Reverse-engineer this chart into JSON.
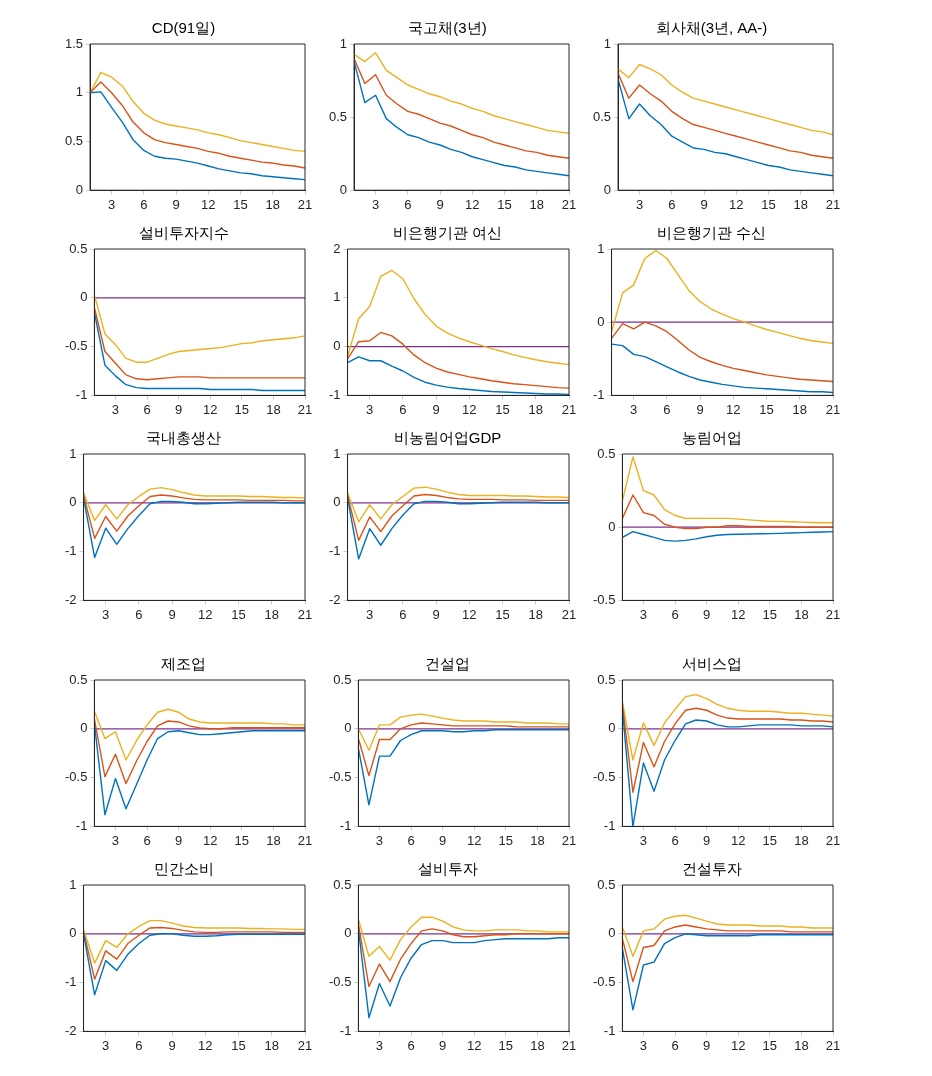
{
  "chart_data": [
    {
      "type": "line",
      "title": "CD(91일)",
      "x": [
        1,
        2,
        3,
        4,
        5,
        6,
        7,
        8,
        9,
        10,
        11,
        12,
        13,
        14,
        15,
        16,
        17,
        18,
        19,
        20,
        21
      ],
      "xlim": [
        1,
        21
      ],
      "xticks": [
        3,
        6,
        9,
        12,
        15,
        18,
        21
      ],
      "ylim": [
        0,
        1.5
      ],
      "yticks": [
        0,
        0.5,
        1,
        1.5
      ],
      "grid": false,
      "legend": false,
      "ref_lines": [
        {
          "axis": "y",
          "value": 0,
          "color": "#7e2f8e"
        }
      ],
      "series": [
        {
          "color": "#0072bd",
          "values": [
            1.0,
            1.01,
            0.85,
            0.7,
            0.52,
            0.41,
            0.35,
            0.33,
            0.32,
            0.3,
            0.28,
            0.25,
            0.22,
            0.2,
            0.18,
            0.17,
            0.15,
            0.14,
            0.13,
            0.12,
            0.11
          ]
        },
        {
          "color": "#d95319",
          "values": [
            1.0,
            1.11,
            1.0,
            0.87,
            0.7,
            0.59,
            0.52,
            0.49,
            0.47,
            0.45,
            0.43,
            0.4,
            0.38,
            0.35,
            0.33,
            0.31,
            0.29,
            0.28,
            0.26,
            0.25,
            0.23
          ]
        },
        {
          "color": "#edb120",
          "values": [
            1.0,
            1.21,
            1.16,
            1.07,
            0.91,
            0.79,
            0.72,
            0.68,
            0.66,
            0.64,
            0.62,
            0.59,
            0.57,
            0.54,
            0.51,
            0.49,
            0.47,
            0.45,
            0.43,
            0.41,
            0.4
          ]
        }
      ]
    },
    {
      "type": "line",
      "title": "국고채(3년)",
      "x": [
        1,
        2,
        3,
        4,
        5,
        6,
        7,
        8,
        9,
        10,
        11,
        12,
        13,
        14,
        15,
        16,
        17,
        18,
        19,
        20,
        21
      ],
      "xlim": [
        1,
        21
      ],
      "xticks": [
        3,
        6,
        9,
        12,
        15,
        18,
        21
      ],
      "ylim": [
        0,
        1
      ],
      "yticks": [
        0,
        0.5,
        1
      ],
      "grid": false,
      "legend": false,
      "ref_lines": [
        {
          "axis": "y",
          "value": 0,
          "color": "#7e2f8e"
        }
      ],
      "series": [
        {
          "color": "#0072bd",
          "values": [
            0.88,
            0.6,
            0.65,
            0.49,
            0.43,
            0.38,
            0.36,
            0.33,
            0.31,
            0.28,
            0.26,
            0.23,
            0.21,
            0.19,
            0.17,
            0.16,
            0.14,
            0.13,
            0.12,
            0.11,
            0.1
          ]
        },
        {
          "color": "#d95319",
          "values": [
            0.9,
            0.73,
            0.79,
            0.65,
            0.59,
            0.54,
            0.52,
            0.49,
            0.46,
            0.44,
            0.41,
            0.38,
            0.36,
            0.33,
            0.31,
            0.29,
            0.27,
            0.26,
            0.24,
            0.23,
            0.22
          ]
        },
        {
          "color": "#edb120",
          "values": [
            0.93,
            0.88,
            0.94,
            0.82,
            0.77,
            0.72,
            0.69,
            0.66,
            0.64,
            0.61,
            0.59,
            0.56,
            0.54,
            0.51,
            0.49,
            0.47,
            0.45,
            0.43,
            0.41,
            0.4,
            0.39
          ]
        }
      ]
    },
    {
      "type": "line",
      "title": "회사채(3년, AA-)",
      "x": [
        1,
        2,
        3,
        4,
        5,
        6,
        7,
        8,
        9,
        10,
        11,
        12,
        13,
        14,
        15,
        16,
        17,
        18,
        19,
        20,
        21
      ],
      "xlim": [
        1,
        21
      ],
      "xticks": [
        3,
        6,
        9,
        12,
        15,
        18,
        21
      ],
      "ylim": [
        0,
        1
      ],
      "yticks": [
        0,
        0.5,
        1
      ],
      "grid": false,
      "legend": false,
      "ref_lines": [
        {
          "axis": "y",
          "value": 0,
          "color": "#7e2f8e"
        }
      ],
      "series": [
        {
          "color": "#0072bd",
          "values": [
            0.76,
            0.49,
            0.59,
            0.51,
            0.45,
            0.37,
            0.33,
            0.29,
            0.28,
            0.26,
            0.25,
            0.23,
            0.21,
            0.19,
            0.17,
            0.16,
            0.14,
            0.13,
            0.12,
            0.11,
            0.1
          ]
        },
        {
          "color": "#d95319",
          "values": [
            0.8,
            0.63,
            0.72,
            0.66,
            0.61,
            0.54,
            0.49,
            0.45,
            0.43,
            0.41,
            0.39,
            0.37,
            0.35,
            0.33,
            0.31,
            0.29,
            0.27,
            0.26,
            0.24,
            0.23,
            0.22
          ]
        },
        {
          "color": "#edb120",
          "values": [
            0.83,
            0.77,
            0.86,
            0.83,
            0.79,
            0.72,
            0.67,
            0.63,
            0.61,
            0.59,
            0.57,
            0.55,
            0.53,
            0.51,
            0.49,
            0.47,
            0.45,
            0.43,
            0.41,
            0.4,
            0.38
          ]
        }
      ]
    },
    {
      "type": "line",
      "title": "설비투자지수",
      "x": [
        1,
        2,
        3,
        4,
        5,
        6,
        7,
        8,
        9,
        10,
        11,
        12,
        13,
        14,
        15,
        16,
        17,
        18,
        19,
        20,
        21
      ],
      "xlim": [
        1,
        21
      ],
      "xticks": [
        3,
        6,
        9,
        12,
        15,
        18,
        21
      ],
      "ylim": [
        -1,
        0.5
      ],
      "yticks": [
        -1,
        -0.5,
        0,
        0.5
      ],
      "grid": false,
      "legend": false,
      "ref_lines": [
        {
          "axis": "y",
          "value": 0,
          "color": "#7e2f8e"
        }
      ],
      "series": [
        {
          "color": "#0072bd",
          "values": [
            -0.15,
            -0.69,
            -0.8,
            -0.89,
            -0.92,
            -0.93,
            -0.93,
            -0.93,
            -0.93,
            -0.93,
            -0.93,
            -0.94,
            -0.94,
            -0.94,
            -0.94,
            -0.94,
            -0.95,
            -0.95,
            -0.95,
            -0.95,
            -0.95
          ]
        },
        {
          "color": "#d95319",
          "values": [
            -0.1,
            -0.55,
            -0.67,
            -0.79,
            -0.83,
            -0.84,
            -0.83,
            -0.82,
            -0.81,
            -0.81,
            -0.81,
            -0.82,
            -0.82,
            -0.82,
            -0.82,
            -0.82,
            -0.82,
            -0.82,
            -0.82,
            -0.82,
            -0.82
          ]
        },
        {
          "color": "#edb120",
          "values": [
            0.03,
            -0.37,
            -0.48,
            -0.62,
            -0.66,
            -0.66,
            -0.62,
            -0.58,
            -0.55,
            -0.54,
            -0.53,
            -0.52,
            -0.51,
            -0.49,
            -0.47,
            -0.46,
            -0.44,
            -0.43,
            -0.42,
            -0.41,
            -0.39
          ]
        }
      ]
    },
    {
      "type": "line",
      "title": "비은행기관 여신",
      "x": [
        1,
        2,
        3,
        4,
        5,
        6,
        7,
        8,
        9,
        10,
        11,
        12,
        13,
        14,
        15,
        16,
        17,
        18,
        19,
        20,
        21
      ],
      "xlim": [
        1,
        21
      ],
      "xticks": [
        3,
        6,
        9,
        12,
        15,
        18,
        21
      ],
      "ylim": [
        -1,
        2
      ],
      "yticks": [
        -1,
        0,
        1,
        2
      ],
      "grid": false,
      "legend": false,
      "ref_lines": [
        {
          "axis": "y",
          "value": 0,
          "color": "#7e2f8e"
        }
      ],
      "series": [
        {
          "color": "#0072bd",
          "values": [
            -0.33,
            -0.21,
            -0.29,
            -0.29,
            -0.4,
            -0.5,
            -0.63,
            -0.73,
            -0.79,
            -0.83,
            -0.86,
            -0.88,
            -0.9,
            -0.92,
            -0.93,
            -0.94,
            -0.95,
            -0.96,
            -0.97,
            -0.97,
            -0.98
          ]
        },
        {
          "color": "#d95319",
          "values": [
            -0.25,
            0.1,
            0.12,
            0.29,
            0.22,
            0.05,
            -0.17,
            -0.33,
            -0.44,
            -0.52,
            -0.57,
            -0.62,
            -0.66,
            -0.7,
            -0.73,
            -0.76,
            -0.78,
            -0.8,
            -0.82,
            -0.84,
            -0.85
          ]
        },
        {
          "color": "#edb120",
          "values": [
            -0.2,
            0.57,
            0.82,
            1.44,
            1.56,
            1.39,
            0.98,
            0.66,
            0.42,
            0.28,
            0.18,
            0.1,
            0.03,
            -0.04,
            -0.1,
            -0.17,
            -0.22,
            -0.27,
            -0.31,
            -0.34,
            -0.37
          ]
        }
      ]
    },
    {
      "type": "line",
      "title": "비은행기관 수신",
      "x": [
        1,
        2,
        3,
        4,
        5,
        6,
        7,
        8,
        9,
        10,
        11,
        12,
        13,
        14,
        15,
        16,
        17,
        18,
        19,
        20,
        21
      ],
      "xlim": [
        1,
        21
      ],
      "xticks": [
        3,
        6,
        9,
        12,
        15,
        18,
        21
      ],
      "ylim": [
        -1,
        1
      ],
      "yticks": [
        -1,
        0,
        1
      ],
      "grid": false,
      "legend": false,
      "ref_lines": [
        {
          "axis": "y",
          "value": 0,
          "color": "#7e2f8e"
        }
      ],
      "series": [
        {
          "color": "#0072bd",
          "values": [
            -0.3,
            -0.32,
            -0.44,
            -0.47,
            -0.54,
            -0.61,
            -0.68,
            -0.74,
            -0.79,
            -0.82,
            -0.85,
            -0.87,
            -0.89,
            -0.9,
            -0.91,
            -0.92,
            -0.93,
            -0.94,
            -0.95,
            -0.95,
            -0.96
          ]
        },
        {
          "color": "#d95319",
          "values": [
            -0.22,
            -0.02,
            -0.09,
            0.0,
            -0.05,
            -0.13,
            -0.25,
            -0.38,
            -0.48,
            -0.54,
            -0.59,
            -0.63,
            -0.66,
            -0.69,
            -0.72,
            -0.74,
            -0.76,
            -0.78,
            -0.79,
            -0.8,
            -0.81
          ]
        },
        {
          "color": "#edb120",
          "values": [
            -0.13,
            0.4,
            0.51,
            0.87,
            0.98,
            0.87,
            0.65,
            0.43,
            0.28,
            0.18,
            0.11,
            0.05,
            0.0,
            -0.05,
            -0.1,
            -0.14,
            -0.18,
            -0.22,
            -0.25,
            -0.27,
            -0.29
          ]
        }
      ]
    },
    {
      "type": "line",
      "title": "국내총생산",
      "x": [
        1,
        2,
        3,
        4,
        5,
        6,
        7,
        8,
        9,
        10,
        11,
        12,
        13,
        14,
        15,
        16,
        17,
        18,
        19,
        20,
        21
      ],
      "xlim": [
        1,
        21
      ],
      "xticks": [
        3,
        6,
        9,
        12,
        15,
        18,
        21
      ],
      "ylim": [
        -2,
        1
      ],
      "yticks": [
        -2,
        -1,
        0,
        1
      ],
      "grid": false,
      "legend": false,
      "ref_lines": [
        {
          "axis": "y",
          "value": 0,
          "color": "#7e2f8e"
        }
      ],
      "series": [
        {
          "color": "#0072bd",
          "values": [
            0.1,
            -1.12,
            -0.52,
            -0.85,
            -0.53,
            -0.26,
            -0.02,
            0.03,
            0.03,
            0.01,
            -0.02,
            -0.02,
            -0.01,
            0.0,
            0.01,
            0.01,
            0.01,
            0.01,
            0.0,
            0.0,
            0.0
          ]
        },
        {
          "color": "#d95319",
          "values": [
            0.15,
            -0.73,
            -0.28,
            -0.58,
            -0.27,
            -0.06,
            0.13,
            0.16,
            0.14,
            0.1,
            0.07,
            0.06,
            0.06,
            0.06,
            0.06,
            0.05,
            0.05,
            0.05,
            0.05,
            0.04,
            0.04
          ]
        },
        {
          "color": "#edb120",
          "values": [
            0.2,
            -0.36,
            -0.04,
            -0.33,
            -0.04,
            0.13,
            0.28,
            0.31,
            0.27,
            0.21,
            0.16,
            0.14,
            0.14,
            0.14,
            0.14,
            0.13,
            0.13,
            0.12,
            0.11,
            0.11,
            0.1
          ]
        }
      ]
    },
    {
      "type": "line",
      "title": "비농림어업GDP",
      "x": [
        1,
        2,
        3,
        4,
        5,
        6,
        7,
        8,
        9,
        10,
        11,
        12,
        13,
        14,
        15,
        16,
        17,
        18,
        19,
        20,
        21
      ],
      "xlim": [
        1,
        21
      ],
      "xticks": [
        3,
        6,
        9,
        12,
        15,
        18,
        21
      ],
      "ylim": [
        -2,
        1
      ],
      "yticks": [
        -2,
        -1,
        0,
        1
      ],
      "grid": false,
      "legend": false,
      "ref_lines": [
        {
          "axis": "y",
          "value": 0,
          "color": "#7e2f8e"
        }
      ],
      "series": [
        {
          "color": "#0072bd",
          "values": [
            0.1,
            -1.15,
            -0.53,
            -0.87,
            -0.53,
            -0.25,
            -0.02,
            0.03,
            0.03,
            0.01,
            -0.02,
            -0.02,
            -0.01,
            0.0,
            0.01,
            0.01,
            0.01,
            0.01,
            0.0,
            0.0,
            0.0
          ]
        },
        {
          "color": "#d95319",
          "values": [
            0.15,
            -0.77,
            -0.29,
            -0.59,
            -0.27,
            -0.06,
            0.14,
            0.17,
            0.15,
            0.11,
            0.08,
            0.07,
            0.07,
            0.07,
            0.06,
            0.06,
            0.06,
            0.05,
            0.05,
            0.05,
            0.05
          ]
        },
        {
          "color": "#edb120",
          "values": [
            0.2,
            -0.39,
            -0.04,
            -0.33,
            -0.04,
            0.13,
            0.3,
            0.32,
            0.28,
            0.22,
            0.17,
            0.15,
            0.15,
            0.15,
            0.15,
            0.14,
            0.14,
            0.13,
            0.12,
            0.12,
            0.11
          ]
        }
      ]
    },
    {
      "type": "line",
      "title": "농림어업",
      "x": [
        1,
        2,
        3,
        4,
        5,
        6,
        7,
        8,
        9,
        10,
        11,
        12,
        13,
        14,
        15,
        16,
        17,
        18,
        19,
        20,
        21
      ],
      "xlim": [
        1,
        21
      ],
      "xticks": [
        3,
        6,
        9,
        12,
        15,
        18,
        21
      ],
      "ylim": [
        -0.5,
        0.5
      ],
      "yticks": [
        -0.5,
        0,
        0.5
      ],
      "grid": false,
      "legend": false,
      "ref_lines": [
        {
          "axis": "y",
          "value": 0,
          "color": "#7e2f8e"
        }
      ],
      "series": [
        {
          "color": "#0072bd",
          "values": [
            -0.07,
            -0.03,
            -0.05,
            -0.07,
            -0.09,
            -0.095,
            -0.09,
            -0.08,
            -0.065,
            -0.055,
            -0.05,
            -0.048,
            -0.046,
            -0.045,
            -0.044,
            -0.042,
            -0.04,
            -0.037,
            -0.035,
            -0.033,
            -0.03
          ]
        },
        {
          "color": "#d95319",
          "values": [
            0.06,
            0.22,
            0.1,
            0.08,
            0.02,
            0.0,
            -0.01,
            -0.01,
            0.0,
            0.0,
            0.01,
            0.01,
            0.005,
            0.005,
            0.005,
            0.005,
            0.005,
            0.0,
            0.0,
            0.0,
            0.0
          ]
        },
        {
          "color": "#edb120",
          "values": [
            0.18,
            0.48,
            0.25,
            0.22,
            0.12,
            0.08,
            0.06,
            0.06,
            0.06,
            0.06,
            0.06,
            0.055,
            0.05,
            0.045,
            0.04,
            0.04,
            0.037,
            0.035,
            0.032,
            0.03,
            0.03
          ]
        }
      ]
    },
    {
      "type": "line",
      "title": "제조업",
      "x": [
        1,
        2,
        3,
        4,
        5,
        6,
        7,
        8,
        9,
        10,
        11,
        12,
        13,
        14,
        15,
        16,
        17,
        18,
        19,
        20,
        21
      ],
      "xlim": [
        1,
        21
      ],
      "xticks": [
        3,
        6,
        9,
        12,
        15,
        18,
        21
      ],
      "ylim": [
        -1,
        0.5
      ],
      "yticks": [
        -1,
        -0.5,
        0,
        0.5
      ],
      "grid": false,
      "legend": false,
      "ref_lines": [
        {
          "axis": "y",
          "value": 0,
          "color": "#7e2f8e"
        }
      ],
      "series": [
        {
          "color": "#0072bd",
          "values": [
            0.05,
            -0.88,
            -0.51,
            -0.82,
            -0.57,
            -0.32,
            -0.1,
            -0.03,
            -0.02,
            -0.04,
            -0.06,
            -0.06,
            -0.05,
            -0.04,
            -0.03,
            -0.02,
            -0.02,
            -0.02,
            -0.02,
            -0.02,
            -0.02
          ]
        },
        {
          "color": "#d95319",
          "values": [
            0.1,
            -0.49,
            -0.26,
            -0.56,
            -0.33,
            -0.13,
            0.03,
            0.08,
            0.07,
            0.03,
            0.01,
            0.0,
            0.0,
            0.01,
            0.01,
            0.01,
            0.01,
            0.01,
            0.01,
            0.01,
            0.01
          ]
        },
        {
          "color": "#edb120",
          "values": [
            0.18,
            -0.1,
            -0.03,
            -0.32,
            -0.12,
            0.04,
            0.17,
            0.2,
            0.17,
            0.1,
            0.07,
            0.06,
            0.06,
            0.06,
            0.06,
            0.06,
            0.06,
            0.05,
            0.05,
            0.04,
            0.04
          ]
        }
      ]
    },
    {
      "type": "line",
      "title": "건설업",
      "x": [
        1,
        2,
        3,
        4,
        5,
        6,
        7,
        8,
        9,
        10,
        11,
        12,
        13,
        14,
        15,
        16,
        17,
        18,
        19,
        20,
        21
      ],
      "xlim": [
        1,
        21
      ],
      "xticks": [
        3,
        6,
        9,
        12,
        15,
        18,
        21
      ],
      "ylim": [
        -1,
        0.5
      ],
      "yticks": [
        -1,
        -0.5,
        0,
        0.5
      ],
      "grid": false,
      "legend": false,
      "ref_lines": [
        {
          "axis": "y",
          "value": 0,
          "color": "#7e2f8e"
        }
      ],
      "series": [
        {
          "color": "#0072bd",
          "values": [
            -0.2,
            -0.78,
            -0.28,
            -0.28,
            -0.12,
            -0.06,
            -0.02,
            -0.02,
            -0.02,
            -0.03,
            -0.03,
            -0.02,
            -0.02,
            -0.01,
            -0.01,
            -0.01,
            -0.01,
            -0.01,
            -0.01,
            -0.01,
            -0.01
          ]
        },
        {
          "color": "#d95319",
          "values": [
            -0.1,
            -0.48,
            -0.11,
            -0.11,
            0.0,
            0.04,
            0.06,
            0.05,
            0.04,
            0.03,
            0.03,
            0.03,
            0.03,
            0.03,
            0.03,
            0.02,
            0.02,
            0.02,
            0.02,
            0.02,
            0.02
          ]
        },
        {
          "color": "#edb120",
          "values": [
            0.0,
            -0.22,
            0.04,
            0.04,
            0.12,
            0.14,
            0.15,
            0.13,
            0.11,
            0.09,
            0.08,
            0.08,
            0.08,
            0.07,
            0.07,
            0.07,
            0.06,
            0.06,
            0.06,
            0.05,
            0.05
          ]
        }
      ]
    },
    {
      "type": "line",
      "title": "서비스업",
      "x": [
        1,
        2,
        3,
        4,
        5,
        6,
        7,
        8,
        9,
        10,
        11,
        12,
        13,
        14,
        15,
        16,
        17,
        18,
        19,
        20,
        21
      ],
      "xlim": [
        1,
        21
      ],
      "xticks": [
        3,
        6,
        9,
        12,
        15,
        18,
        21
      ],
      "ylim": [
        -1,
        0.5
      ],
      "yticks": [
        -1,
        -0.5,
        0,
        0.5
      ],
      "grid": false,
      "legend": false,
      "ref_lines": [
        {
          "axis": "y",
          "value": 0,
          "color": "#7e2f8e"
        }
      ],
      "series": [
        {
          "color": "#0072bd",
          "values": [
            0.2,
            -1.0,
            -0.35,
            -0.64,
            -0.32,
            -0.12,
            0.05,
            0.09,
            0.08,
            0.04,
            0.02,
            0.02,
            0.03,
            0.04,
            0.04,
            0.04,
            0.04,
            0.03,
            0.03,
            0.03,
            0.02
          ]
        },
        {
          "color": "#d95319",
          "values": [
            0.25,
            -0.65,
            -0.14,
            -0.39,
            -0.13,
            0.05,
            0.19,
            0.21,
            0.19,
            0.14,
            0.11,
            0.1,
            0.1,
            0.1,
            0.1,
            0.1,
            0.09,
            0.09,
            0.08,
            0.08,
            0.07
          ]
        },
        {
          "color": "#edb120",
          "values": [
            0.28,
            -0.32,
            0.06,
            -0.17,
            0.06,
            0.2,
            0.33,
            0.35,
            0.31,
            0.25,
            0.21,
            0.19,
            0.18,
            0.18,
            0.18,
            0.17,
            0.16,
            0.16,
            0.15,
            0.14,
            0.13
          ]
        }
      ]
    },
    {
      "type": "line",
      "title": "민간소비",
      "x": [
        1,
        2,
        3,
        4,
        5,
        6,
        7,
        8,
        9,
        10,
        11,
        12,
        13,
        14,
        15,
        16,
        17,
        18,
        19,
        20,
        21
      ],
      "xlim": [
        1,
        21
      ],
      "xticks": [
        3,
        6,
        9,
        12,
        15,
        18,
        21
      ],
      "ylim": [
        -2,
        1
      ],
      "yticks": [
        -2,
        -1,
        0,
        1
      ],
      "grid": false,
      "legend": false,
      "ref_lines": [
        {
          "axis": "y",
          "value": 0,
          "color": "#7e2f8e"
        }
      ],
      "series": [
        {
          "color": "#0072bd",
          "values": [
            0.0,
            -1.25,
            -0.55,
            -0.75,
            -0.42,
            -0.2,
            -0.03,
            0.0,
            0.0,
            -0.03,
            -0.05,
            -0.05,
            -0.04,
            -0.02,
            -0.01,
            -0.01,
            -0.01,
            -0.01,
            -0.01,
            -0.01,
            -0.01
          ]
        },
        {
          "color": "#d95319",
          "values": [
            0.05,
            -0.93,
            -0.35,
            -0.52,
            -0.2,
            -0.03,
            0.12,
            0.13,
            0.11,
            0.07,
            0.04,
            0.03,
            0.03,
            0.04,
            0.04,
            0.04,
            0.04,
            0.04,
            0.03,
            0.03,
            0.03
          ]
        },
        {
          "color": "#edb120",
          "values": [
            0.08,
            -0.6,
            -0.14,
            -0.28,
            0.0,
            0.15,
            0.27,
            0.27,
            0.22,
            0.16,
            0.13,
            0.12,
            0.12,
            0.12,
            0.12,
            0.11,
            0.11,
            0.1,
            0.1,
            0.09,
            0.09
          ]
        }
      ]
    },
    {
      "type": "line",
      "title": "설비투자",
      "x": [
        1,
        2,
        3,
        4,
        5,
        6,
        7,
        8,
        9,
        10,
        11,
        12,
        13,
        14,
        15,
        16,
        17,
        18,
        19,
        20,
        21
      ],
      "xlim": [
        1,
        21
      ],
      "xticks": [
        3,
        6,
        9,
        12,
        15,
        18,
        21
      ],
      "ylim": [
        -1,
        0.5
      ],
      "yticks": [
        -1,
        -0.5,
        0,
        0.5
      ],
      "grid": false,
      "legend": false,
      "ref_lines": [
        {
          "axis": "y",
          "value": 0,
          "color": "#7e2f8e"
        }
      ],
      "series": [
        {
          "color": "#0072bd",
          "values": [
            0.05,
            -0.86,
            -0.51,
            -0.74,
            -0.45,
            -0.25,
            -0.11,
            -0.07,
            -0.07,
            -0.09,
            -0.09,
            -0.09,
            -0.07,
            -0.06,
            -0.05,
            -0.05,
            -0.05,
            -0.05,
            -0.05,
            -0.04,
            -0.04
          ]
        },
        {
          "color": "#d95319",
          "values": [
            0.1,
            -0.54,
            -0.31,
            -0.49,
            -0.26,
            -0.1,
            0.03,
            0.05,
            0.03,
            -0.01,
            -0.03,
            -0.03,
            -0.02,
            -0.01,
            -0.01,
            0.0,
            0.0,
            0.0,
            0.0,
            0.0,
            0.0
          ]
        },
        {
          "color": "#edb120",
          "values": [
            0.15,
            -0.23,
            -0.13,
            -0.27,
            -0.06,
            0.07,
            0.17,
            0.17,
            0.13,
            0.07,
            0.04,
            0.03,
            0.03,
            0.04,
            0.04,
            0.04,
            0.03,
            0.03,
            0.02,
            0.02,
            0.02
          ]
        }
      ]
    },
    {
      "type": "line",
      "title": "건설투자",
      "x": [
        1,
        2,
        3,
        4,
        5,
        6,
        7,
        8,
        9,
        10,
        11,
        12,
        13,
        14,
        15,
        16,
        17,
        18,
        19,
        20,
        21
      ],
      "xlim": [
        1,
        21
      ],
      "xticks": [
        3,
        6,
        9,
        12,
        15,
        18,
        21
      ],
      "ylim": [
        -1,
        0.5
      ],
      "yticks": [
        -1,
        -0.5,
        0,
        0.5
      ],
      "grid": false,
      "legend": false,
      "ref_lines": [
        {
          "axis": "y",
          "value": 0,
          "color": "#7e2f8e"
        }
      ],
      "series": [
        {
          "color": "#0072bd",
          "values": [
            -0.15,
            -0.78,
            -0.32,
            -0.29,
            -0.1,
            -0.04,
            0.0,
            -0.01,
            -0.02,
            -0.02,
            -0.02,
            -0.02,
            -0.02,
            -0.01,
            -0.01,
            -0.01,
            -0.01,
            -0.01,
            -0.01,
            -0.01,
            -0.01
          ]
        },
        {
          "color": "#d95319",
          "values": [
            -0.05,
            -0.49,
            -0.14,
            -0.12,
            0.03,
            0.07,
            0.09,
            0.07,
            0.05,
            0.04,
            0.03,
            0.03,
            0.03,
            0.03,
            0.03,
            0.03,
            0.02,
            0.02,
            0.02,
            0.02,
            0.02
          ]
        },
        {
          "color": "#edb120",
          "values": [
            0.07,
            -0.23,
            0.03,
            0.05,
            0.15,
            0.18,
            0.19,
            0.16,
            0.13,
            0.1,
            0.09,
            0.09,
            0.09,
            0.08,
            0.08,
            0.08,
            0.07,
            0.07,
            0.06,
            0.06,
            0.06
          ]
        }
      ]
    }
  ]
}
